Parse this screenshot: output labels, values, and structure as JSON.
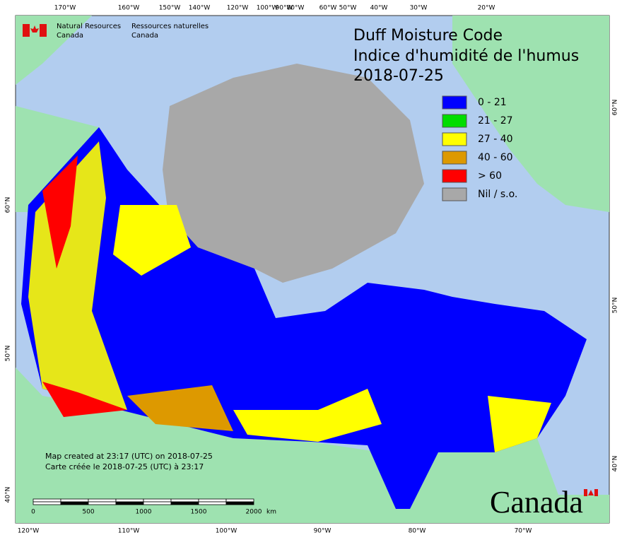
{
  "agency": {
    "en": [
      "Natural Resources",
      "Canada"
    ],
    "fr": [
      "Ressources naturelles",
      "Canada"
    ]
  },
  "title": [
    "Duff Moisture Code",
    "Indice d'humidité de l'humus",
    "2018-07-25"
  ],
  "legend": [
    {
      "label": "0 - 21",
      "color": "#0000ff"
    },
    {
      "label": "21 - 27",
      "color": "#00dd00"
    },
    {
      "label": "27 - 40",
      "color": "#ffff00"
    },
    {
      "label": "40 - 60",
      "color": "#dd9900"
    },
    {
      "label": "> 60",
      "color": "#ff0000"
    },
    {
      "label": "Nil / s.o.",
      "color": "#a8a8a8"
    }
  ],
  "graticule": {
    "top": [
      "170°W",
      "160°W",
      "150°W",
      "140°W",
      "120°W",
      "100°W",
      "90°W",
      "80°W",
      "60°W",
      "50°W",
      "40°W",
      "30°W",
      "20°W"
    ],
    "bottom": [
      "120°W",
      "110°W",
      "100°W",
      "90°W",
      "80°W",
      "70°W"
    ],
    "left": [
      "60°N",
      "50°N",
      "40°N"
    ],
    "right": [
      "60°N",
      "50°N",
      "40°N"
    ]
  },
  "notes": [
    "Map created at 23:17 (UTC) on 2018-07-25",
    "Carte créée le 2018-07-25 (UTC) à 23:17"
  ],
  "scale_bar": {
    "ticks": [
      "0",
      "500",
      "1000",
      "1500",
      "2000"
    ],
    "unit": "km"
  },
  "wordmark": "Canada"
}
